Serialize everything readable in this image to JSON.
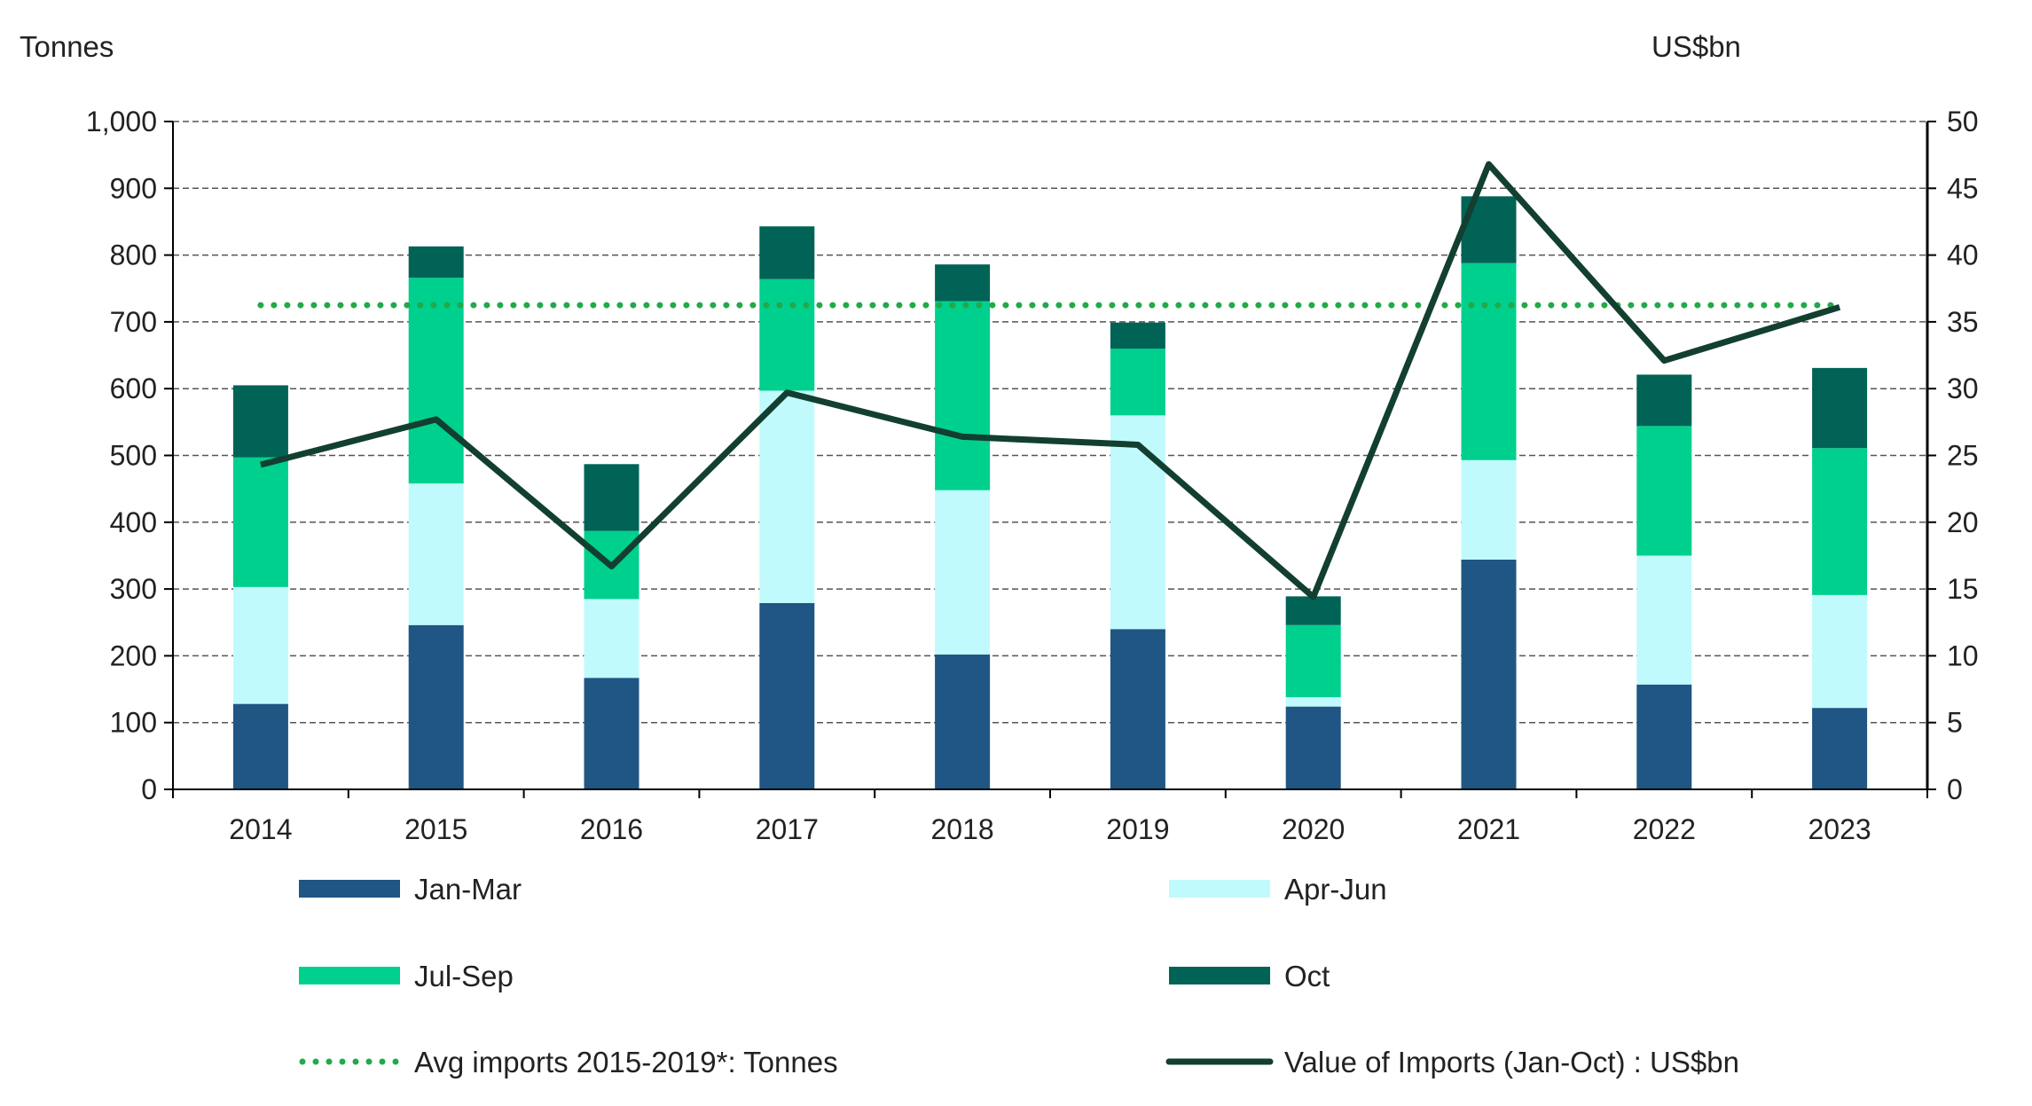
{
  "chart_data": {
    "type": "bar",
    "stacked": true,
    "categories": [
      "2014",
      "2015",
      "2016",
      "2017",
      "2018",
      "2019",
      "2020",
      "2021",
      "2022",
      "2023"
    ],
    "y_left": {
      "label": "Tonnes",
      "range": [
        0,
        1000
      ],
      "ticks": [
        "0",
        "100",
        "200",
        "300",
        "400",
        "500",
        "600",
        "700",
        "800",
        "900",
        "1,000"
      ]
    },
    "y_right": {
      "label": "US$bn",
      "range": [
        0,
        50
      ],
      "ticks": [
        "0",
        "5",
        "10",
        "15",
        "20",
        "25",
        "30",
        "35",
        "40",
        "45",
        "50"
      ]
    },
    "grid": true,
    "legend_placement": "bottom",
    "series": [
      {
        "name": "Jan-Mar",
        "axis": "left",
        "kind": "bar",
        "color": "#1f5684",
        "values": [
          128,
          246,
          167,
          279,
          202,
          240,
          124,
          344,
          157,
          122
        ]
      },
      {
        "name": "Apr-Jun",
        "axis": "left",
        "kind": "bar",
        "color": "#c1fafc",
        "values": [
          175,
          212,
          118,
          318,
          246,
          320,
          14,
          149,
          193,
          169
        ]
      },
      {
        "name": "Jul-Sep",
        "axis": "left",
        "kind": "bar",
        "color": "#00d08e",
        "values": [
          194,
          308,
          102,
          167,
          283,
          100,
          108,
          295,
          194,
          220
        ]
      },
      {
        "name": "Oct",
        "axis": "left",
        "kind": "bar",
        "color": "#006356",
        "values": [
          108,
          47,
          100,
          79,
          55,
          39,
          43,
          100,
          77,
          120
        ]
      },
      {
        "name": "Avg imports 2015-2019*: Tonnes",
        "axis": "left",
        "kind": "dotted-line",
        "color": "#22a94a",
        "values": [
          725,
          725,
          725,
          725,
          725,
          725,
          725,
          725,
          725,
          725
        ]
      },
      {
        "name": "Value of Imports (Jan-Oct) : US$bn",
        "axis": "right",
        "kind": "line",
        "color": "#123f30",
        "values": [
          24.3,
          27.7,
          16.7,
          29.7,
          26.4,
          25.8,
          14.4,
          46.8,
          32.1,
          36.1
        ]
      }
    ]
  }
}
